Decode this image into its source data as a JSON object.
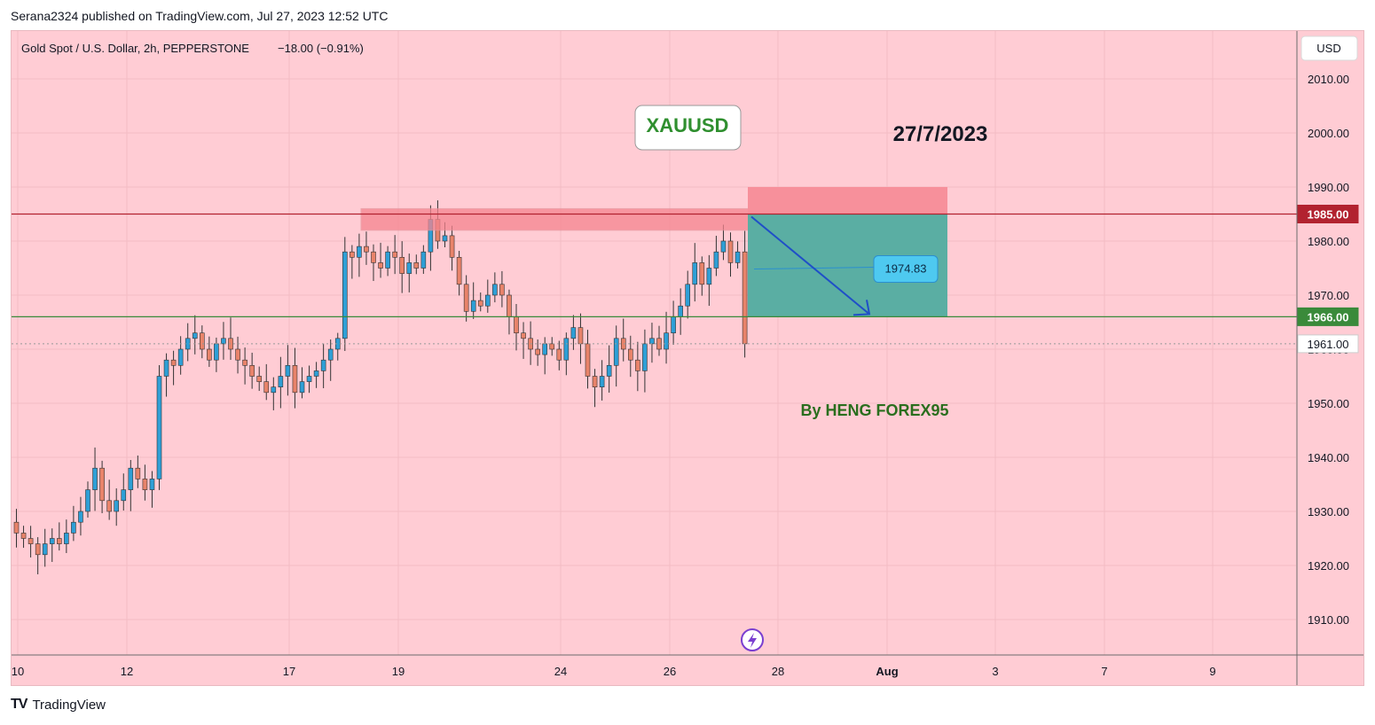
{
  "header": {
    "publisher": "Serana2324 published on TradingView.com, Jul 27, 2023 12:52 UTC",
    "symbol_info": "Gold Spot / U.S. Dollar, 2h, PEPPERSTONE",
    "change": "−18.00 (−0.91%)",
    "currency": "USD"
  },
  "annotations": {
    "symbol_box": "XAUUSD",
    "date": "27/7/2023",
    "author": "By HENG FOREX95",
    "target_label": "1974.83"
  },
  "footer": {
    "brand": "TradingView"
  },
  "colors": {
    "background": "#ffccd4",
    "bull": "#2e9fd6",
    "bear": "#e8836a",
    "resistance": "#b2222f",
    "support": "#3a8a3a",
    "zone": "#f5858f",
    "profit": "#5aaea3",
    "arrow": "#1f4fc8"
  },
  "chart_data": {
    "type": "candlestick",
    "title": "Gold Spot / U.S. Dollar, 2h, PEPPERSTONE",
    "y_ticks": [
      2010,
      2000,
      1990,
      1980,
      1970,
      1960,
      1950,
      1940,
      1930,
      1920,
      1910
    ],
    "x_ticks": [
      "10",
      "12",
      "17",
      "19",
      "24",
      "26",
      "28",
      "Aug",
      "3",
      "7",
      "9"
    ],
    "price_labels": [
      {
        "value": 1985.0,
        "text": "1985.00",
        "kind": "resistance"
      },
      {
        "value": 1966.0,
        "text": "1966.00",
        "kind": "support"
      },
      {
        "value": 1961.0,
        "text": "1961.00",
        "kind": "last"
      }
    ],
    "resistance_zone": [
      1982,
      1986
    ],
    "short_position": {
      "entry": 1985,
      "stop": 1990,
      "target": 1966
    },
    "target_price": 1974.83,
    "close_path": [
      1926,
      1925,
      1924,
      1922,
      1924,
      1925,
      1924,
      1926,
      1928,
      1930,
      1934,
      1938,
      1932,
      1930,
      1932,
      1934,
      1938,
      1936,
      1934,
      1936,
      1955,
      1958,
      1957,
      1960,
      1962,
      1963,
      1960,
      1958,
      1961,
      1962,
      1960,
      1958,
      1957,
      1955,
      1954,
      1952,
      1953,
      1955,
      1957,
      1952,
      1954,
      1955,
      1956,
      1958,
      1960,
      1962,
      1978,
      1977,
      1979,
      1978,
      1976,
      1975,
      1978,
      1977,
      1974,
      1976,
      1975,
      1978,
      1984,
      1980,
      1981,
      1977,
      1972,
      1967,
      1969,
      1968,
      1970,
      1972,
      1970,
      1966,
      1963,
      1962,
      1960,
      1959,
      1961,
      1960,
      1958,
      1962,
      1964,
      1961,
      1955,
      1953,
      1955,
      1957,
      1962,
      1960,
      1958,
      1956,
      1961,
      1962,
      1960,
      1963,
      1966,
      1968,
      1972,
      1976,
      1972,
      1975,
      1978,
      1980,
      1976,
      1978,
      1961
    ]
  }
}
